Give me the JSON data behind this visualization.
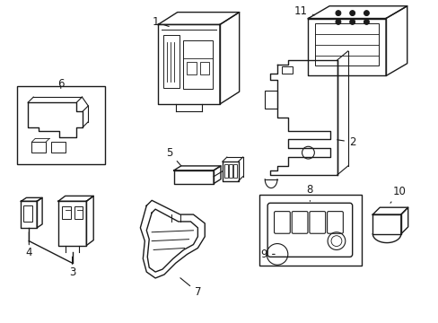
{
  "background_color": "#ffffff",
  "line_color": "#1a1a1a",
  "line_width": 1.0,
  "label_fontsize": 8.5
}
